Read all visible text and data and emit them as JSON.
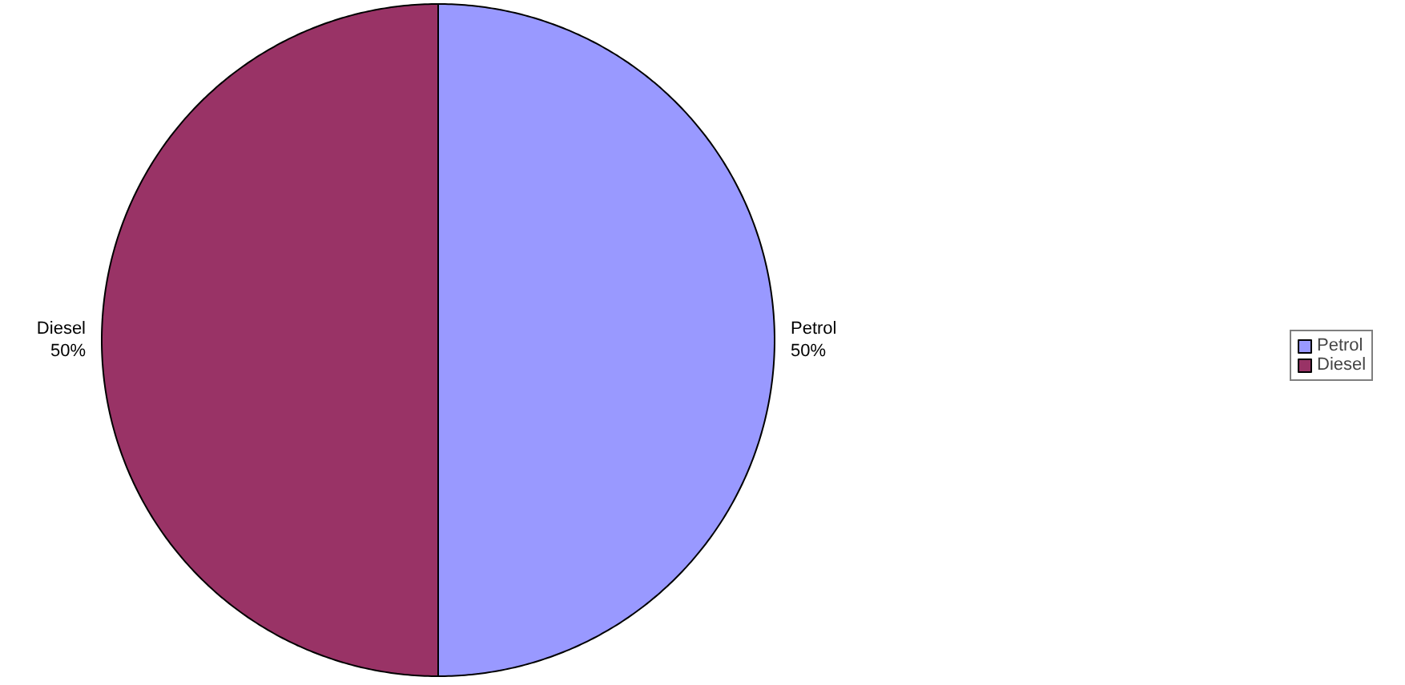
{
  "chart_data": {
    "type": "pie",
    "categories": [
      "Petrol",
      "Diesel"
    ],
    "values": [
      50,
      50
    ],
    "colors": [
      "#9999ff",
      "#993366"
    ],
    "value_labels": [
      "50%",
      "50%"
    ],
    "legend": "right"
  }
}
